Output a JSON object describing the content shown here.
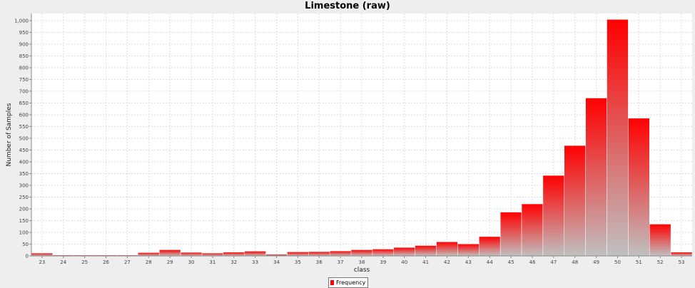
{
  "chart_data": {
    "type": "bar",
    "title": "Limestone (raw)",
    "xlabel": "class",
    "ylabel": "Number of Samples",
    "ylim": [
      0,
      1030
    ],
    "yticks": [
      0,
      50,
      100,
      150,
      200,
      250,
      300,
      350,
      400,
      450,
      500,
      550,
      600,
      650,
      700,
      750,
      800,
      850,
      900,
      950,
      1000
    ],
    "ytick_labels": [
      "0",
      "50",
      "100",
      "150",
      "200",
      "250",
      "300",
      "350",
      "400",
      "450",
      "500",
      "550",
      "600",
      "650",
      "700",
      "750",
      "800",
      "850",
      "900",
      "950",
      "1,000"
    ],
    "categories": [
      "23",
      "24",
      "25",
      "26",
      "27",
      "28",
      "29",
      "30",
      "31",
      "32",
      "33",
      "34",
      "35",
      "36",
      "37",
      "38",
      "39",
      "40",
      "41",
      "42",
      "43",
      "44",
      "45",
      "46",
      "47",
      "48",
      "49",
      "50",
      "51",
      "52",
      "53"
    ],
    "series": [
      {
        "name": "Frequency",
        "values": [
          12,
          4,
          4,
          4,
          4,
          14,
          26,
          15,
          12,
          16,
          20,
          7,
          17,
          18,
          21,
          26,
          29,
          36,
          44,
          60,
          51,
          82,
          186,
          221,
          342,
          469,
          671,
          1005,
          585,
          135,
          16
        ]
      }
    ],
    "grid": true,
    "legend": "bottom-center",
    "bar_color": "#ff0000",
    "bar_fade_color": "#c0c0c0",
    "plot_background": "#ffffff",
    "gridline_color": "#dddddd"
  }
}
